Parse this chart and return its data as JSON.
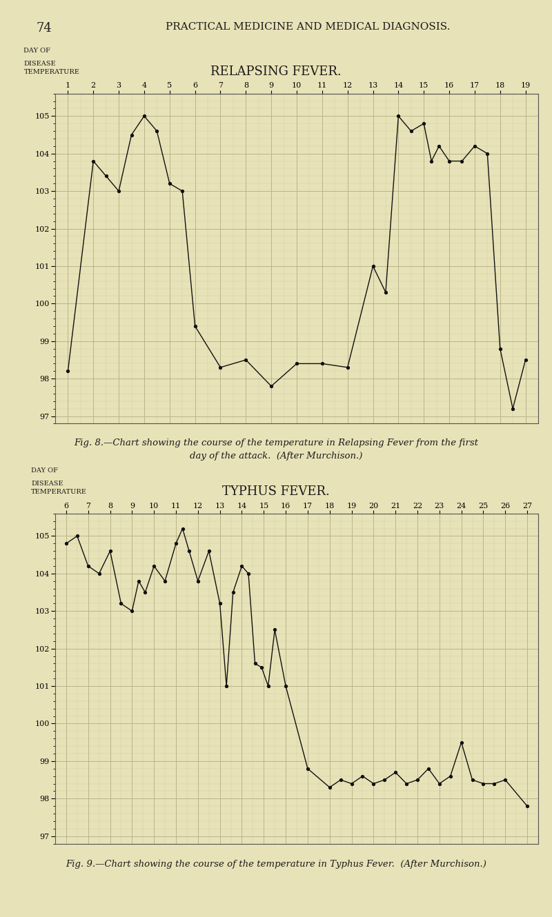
{
  "page_number": "74",
  "page_title": "PRACTICAL MEDICINE AND MEDICAL DIAGNOSIS.",
  "bg_color": "#e8e2b8",
  "grid_major_color": "#b8b488",
  "grid_minor_color": "#ceca9e",
  "line_color": "#111111",
  "chart1_title": "RELAPSING FEVER.",
  "chart1_caption_line1": "Fig. 8.—Chart showing the course of the temperature in Relapsing Fever from the first",
  "chart1_caption_line2": "day of the attack.  (After Murchison.)",
  "chart1_x_ticks": [
    1,
    2,
    3,
    4,
    5,
    6,
    7,
    8,
    9,
    10,
    11,
    12,
    13,
    14,
    15,
    16,
    17,
    18,
    19
  ],
  "chart1_y_ticks": [
    97,
    98,
    99,
    100,
    101,
    102,
    103,
    104,
    105
  ],
  "chart1_xlim": [
    0.5,
    19.5
  ],
  "chart1_ylim": [
    96.8,
    105.6
  ],
  "chart1_rx": [
    1,
    2,
    2.5,
    3,
    3.5,
    4,
    4.5,
    5,
    5.5,
    6,
    7,
    8,
    9,
    10,
    11,
    12,
    13,
    13.5,
    14,
    14.5,
    15,
    15.3,
    15.6,
    16,
    16.5,
    17,
    17.5,
    18,
    18.5,
    19
  ],
  "chart1_ry": [
    98.2,
    103.8,
    103.4,
    103.0,
    104.5,
    105.0,
    104.6,
    103.2,
    103.0,
    99.4,
    98.3,
    98.5,
    97.8,
    98.4,
    98.4,
    98.3,
    101.0,
    100.3,
    105.0,
    104.6,
    104.8,
    103.8,
    104.2,
    103.8,
    103.8,
    104.2,
    104.0,
    98.8,
    97.2,
    98.5
  ],
  "chart2_title": "TYPHUS FEVER.",
  "chart2_caption": "Fig. 9.—Chart showing the course of the temperature in Typhus Fever.  (After Murchison.)",
  "chart2_x_ticks": [
    6,
    7,
    8,
    9,
    10,
    11,
    12,
    13,
    14,
    15,
    16,
    17,
    18,
    19,
    20,
    21,
    22,
    23,
    24,
    25,
    26,
    27
  ],
  "chart2_y_ticks": [
    97,
    98,
    99,
    100,
    101,
    102,
    103,
    104,
    105
  ],
  "chart2_xlim": [
    5.5,
    27.5
  ],
  "chart2_ylim": [
    96.8,
    105.6
  ],
  "chart2_tx": [
    6,
    6.5,
    7,
    7.5,
    8,
    8.5,
    9,
    9.3,
    9.6,
    10,
    10.5,
    11,
    11.3,
    11.6,
    12,
    12.5,
    13,
    13.3,
    13.6,
    14,
    14.3,
    14.6,
    14.9,
    15.2,
    15.5,
    16,
    17,
    18,
    18.5,
    19,
    19.5,
    20,
    20.5,
    21,
    21.5,
    22,
    22.5,
    23,
    23.5,
    24,
    24.5,
    25,
    25.5,
    26,
    27
  ],
  "chart2_ty": [
    104.8,
    105.0,
    104.2,
    104.0,
    104.6,
    103.2,
    103.0,
    103.8,
    103.5,
    104.2,
    103.8,
    104.8,
    105.2,
    104.6,
    103.8,
    104.6,
    103.2,
    101.0,
    103.5,
    104.2,
    104.0,
    101.6,
    101.5,
    101.0,
    102.5,
    101.0,
    98.8,
    98.3,
    98.5,
    98.4,
    98.6,
    98.4,
    98.5,
    98.7,
    98.4,
    98.5,
    98.8,
    98.4,
    98.6,
    99.5,
    98.5,
    98.4,
    98.4,
    98.5,
    97.8
  ]
}
